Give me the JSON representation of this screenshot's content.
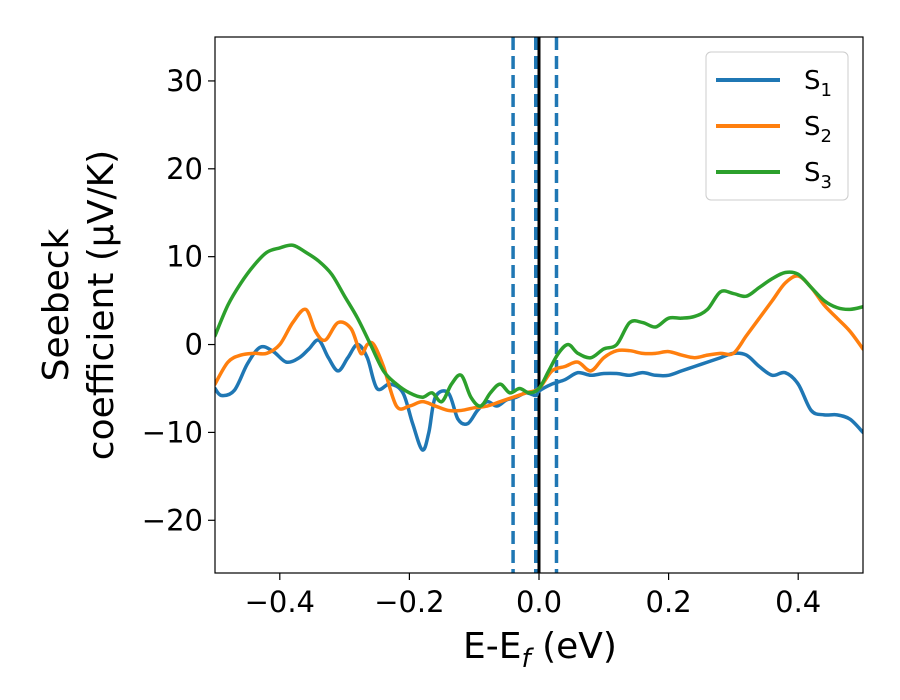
{
  "chart_data": {
    "type": "line",
    "xlabel": "E-E",
    "xlabel_sub": "f",
    "xlabel_unit": " (eV)",
    "ylabel_line1": "Seebeck",
    "ylabel_line2": "coefficient  (μV/K)",
    "xlim": [
      -0.5,
      0.5
    ],
    "ylim": [
      -26,
      35
    ],
    "xticks": [
      -0.4,
      -0.2,
      0.0,
      0.2,
      0.4
    ],
    "xtick_labels": [
      "−0.4",
      "−0.2",
      "0.0",
      "0.2",
      "0.4"
    ],
    "yticks": [
      -20,
      -10,
      0,
      10,
      20,
      30
    ],
    "ytick_labels": [
      "−20",
      "−10",
      "0",
      "10",
      "20",
      "30"
    ],
    "grid": false,
    "legend_position": "top-right",
    "vertical_lines": [
      {
        "x": -0.04,
        "style": "dashed",
        "color": "#1f77b4"
      },
      {
        "x": -0.005,
        "style": "dashed",
        "color": "#1f77b4"
      },
      {
        "x": 0.027,
        "style": "dashed",
        "color": "#1f77b4"
      },
      {
        "x": 0.0,
        "style": "solid",
        "color": "#000000"
      }
    ],
    "series": [
      {
        "name": "S",
        "sub": "1",
        "color": "#1f77b4",
        "x": [
          -0.5,
          -0.49,
          -0.47,
          -0.45,
          -0.43,
          -0.41,
          -0.39,
          -0.37,
          -0.355,
          -0.34,
          -0.325,
          -0.31,
          -0.295,
          -0.28,
          -0.265,
          -0.25,
          -0.23,
          -0.21,
          -0.195,
          -0.18,
          -0.17,
          -0.16,
          -0.14,
          -0.125,
          -0.11,
          -0.095,
          -0.08,
          -0.065,
          -0.05,
          -0.035,
          -0.02,
          -0.005,
          0.0,
          0.02,
          0.04,
          0.06,
          0.08,
          0.1,
          0.12,
          0.14,
          0.16,
          0.18,
          0.2,
          0.22,
          0.24,
          0.26,
          0.28,
          0.3,
          0.32,
          0.34,
          0.36,
          0.38,
          0.4,
          0.42,
          0.44,
          0.46,
          0.48,
          0.5
        ],
        "y": [
          -5,
          -5.8,
          -5.2,
          -2.2,
          -0.3,
          -0.8,
          -2,
          -1.5,
          -0.5,
          0.5,
          -1.5,
          -3,
          -1.5,
          0,
          -1.5,
          -5,
          -4.5,
          -5.5,
          -9,
          -12,
          -10,
          -6,
          -5.5,
          -8.5,
          -9,
          -7.5,
          -6.5,
          -7,
          -6.3,
          -6,
          -5.5,
          -5.8,
          -5.3,
          -4.5,
          -4,
          -3.2,
          -3.5,
          -3.3,
          -3.3,
          -3.5,
          -3.2,
          -3.5,
          -3.5,
          -3,
          -2.5,
          -2,
          -1.5,
          -1,
          -1.2,
          -2.5,
          -3.5,
          -3.2,
          -4.5,
          -7.5,
          -8,
          -8,
          -8.5,
          -10
        ]
      },
      {
        "name": "S",
        "sub": "2",
        "color": "#ff7f0e",
        "x": [
          -0.5,
          -0.48,
          -0.46,
          -0.44,
          -0.42,
          -0.4,
          -0.38,
          -0.36,
          -0.345,
          -0.33,
          -0.31,
          -0.29,
          -0.275,
          -0.265,
          -0.255,
          -0.24,
          -0.22,
          -0.2,
          -0.18,
          -0.16,
          -0.14,
          -0.12,
          -0.1,
          -0.08,
          -0.06,
          -0.04,
          -0.02,
          0.0,
          0.02,
          0.04,
          0.06,
          0.08,
          0.1,
          0.12,
          0.14,
          0.16,
          0.18,
          0.2,
          0.22,
          0.24,
          0.26,
          0.28,
          0.3,
          0.32,
          0.34,
          0.36,
          0.38,
          0.4,
          0.42,
          0.44,
          0.46,
          0.48,
          0.5
        ],
        "y": [
          -4.5,
          -2,
          -1.2,
          -1,
          -1,
          0,
          2.5,
          4,
          1.5,
          0.5,
          2.5,
          1.8,
          -1,
          0,
          0,
          -2.5,
          -7,
          -7,
          -6.5,
          -7,
          -7.5,
          -7.5,
          -7.2,
          -7,
          -6.5,
          -6,
          -5.5,
          -5,
          -3,
          -2.5,
          -2,
          -3,
          -1.5,
          -0.7,
          -0.7,
          -1,
          -1,
          -0.8,
          -1.2,
          -1.5,
          -1.2,
          -1,
          -1,
          1,
          3,
          5,
          7,
          7.8,
          6.5,
          4.5,
          3,
          1.5,
          -0.5
        ]
      },
      {
        "name": "S",
        "sub": "3",
        "color": "#2ca02c",
        "x": [
          -0.5,
          -0.48,
          -0.46,
          -0.44,
          -0.42,
          -0.4,
          -0.38,
          -0.36,
          -0.34,
          -0.32,
          -0.3,
          -0.28,
          -0.26,
          -0.24,
          -0.22,
          -0.2,
          -0.18,
          -0.165,
          -0.15,
          -0.135,
          -0.12,
          -0.105,
          -0.09,
          -0.075,
          -0.06,
          -0.045,
          -0.03,
          -0.015,
          0.0,
          0.015,
          0.03,
          0.045,
          0.06,
          0.08,
          0.1,
          0.12,
          0.14,
          0.16,
          0.18,
          0.2,
          0.22,
          0.24,
          0.26,
          0.28,
          0.3,
          0.32,
          0.34,
          0.36,
          0.38,
          0.4,
          0.42,
          0.44,
          0.46,
          0.48,
          0.5
        ],
        "y": [
          1,
          4.5,
          7,
          9,
          10.5,
          11,
          11.3,
          10.5,
          9.5,
          8,
          5.5,
          3,
          0,
          -3,
          -4.5,
          -5.5,
          -6,
          -5.5,
          -6.5,
          -4.5,
          -3.5,
          -6,
          -7,
          -5.5,
          -4.5,
          -5.5,
          -5,
          -5.5,
          -5,
          -3,
          -1,
          0,
          -1,
          -1.5,
          -0.5,
          0,
          2.5,
          2.5,
          2,
          3,
          3,
          3.2,
          4,
          6,
          5.8,
          5.5,
          6.5,
          7.5,
          8.2,
          8,
          6.5,
          5,
          4.2,
          4,
          4.3
        ]
      }
    ]
  }
}
